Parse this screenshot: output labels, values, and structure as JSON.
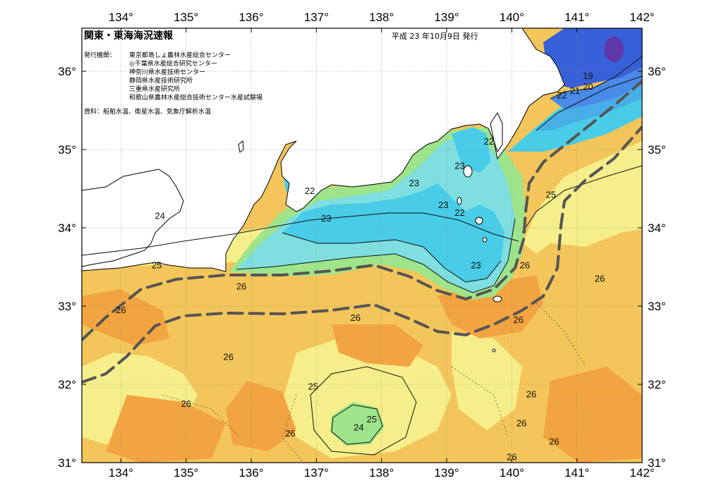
{
  "header": {
    "title": "関東・東海海況速報",
    "date": "平成 23 年10月9日 発行"
  },
  "info": {
    "issuer_label": "発行機関：",
    "issuers": [
      "東京都島しょ農林水産総合センター",
      "◎千葉県水産総合研究センター",
      "神奈川県水産技術センター",
      "静岡県水産技術研究所",
      "三重県水産研究所",
      "和歌山県農林水産総合技術センター水産試験場"
    ],
    "source": "資料：船舶水温、衛星水温、気象庁解析水温"
  },
  "axes": {
    "lon_labels": [
      "134°",
      "135°",
      "136°",
      "137°",
      "138°",
      "139°",
      "140°",
      "141°",
      "142°"
    ],
    "lat_labels": [
      "36°",
      "35°",
      "34°",
      "33°",
      "32°",
      "31°"
    ]
  },
  "isotherm_labels": [
    {
      "text": "19",
      "lon": 141.17,
      "lat": 35.92
    },
    {
      "text": "20",
      "lon": 141.17,
      "lat": 35.78
    },
    {
      "text": "21",
      "lon": 140.97,
      "lat": 35.73
    },
    {
      "text": "22",
      "lon": 140.77,
      "lat": 35.67
    },
    {
      "text": "22",
      "lon": 139.65,
      "lat": 35.08
    },
    {
      "text": "23",
      "lon": 139.2,
      "lat": 34.77
    },
    {
      "text": "23",
      "lon": 138.5,
      "lat": 34.55
    },
    {
      "text": "23",
      "lon": 138.95,
      "lat": 34.27
    },
    {
      "text": "22",
      "lon": 139.2,
      "lat": 34.17
    },
    {
      "text": "23",
      "lon": 139.45,
      "lat": 33.5
    },
    {
      "text": "26",
      "lon": 140.2,
      "lat": 33.5
    },
    {
      "text": "25",
      "lon": 140.6,
      "lat": 34.4
    },
    {
      "text": "26",
      "lon": 141.35,
      "lat": 33.33
    },
    {
      "text": "22",
      "lon": 136.9,
      "lat": 34.45
    },
    {
      "text": "23",
      "lon": 137.15,
      "lat": 34.1
    },
    {
      "text": "24",
      "lon": 134.6,
      "lat": 34.13
    },
    {
      "text": "25",
      "lon": 134.55,
      "lat": 33.5
    },
    {
      "text": "26",
      "lon": 135.85,
      "lat": 33.23
    },
    {
      "text": "26",
      "lon": 134.0,
      "lat": 32.93
    },
    {
      "text": "26",
      "lon": 137.6,
      "lat": 32.83
    },
    {
      "text": "26",
      "lon": 140.1,
      "lat": 32.8
    },
    {
      "text": "26",
      "lon": 135.65,
      "lat": 32.33
    },
    {
      "text": "25",
      "lon": 136.95,
      "lat": 31.95
    },
    {
      "text": "26",
      "lon": 135.0,
      "lat": 31.73
    },
    {
      "text": "24",
      "lon": 137.65,
      "lat": 31.43
    },
    {
      "text": "25",
      "lon": 137.85,
      "lat": 31.53
    },
    {
      "text": "26",
      "lon": 140.3,
      "lat": 31.85
    },
    {
      "text": "26",
      "lon": 136.6,
      "lat": 31.35
    },
    {
      "text": "26",
      "lon": 140.15,
      "lat": 31.48
    },
    {
      "text": "26",
      "lon": 140.65,
      "lat": 31.25
    },
    {
      "text": "26",
      "lon": 140.0,
      "lat": 31.05
    }
  ],
  "colors": {
    "t19": "#3860d8",
    "t20": "#4a8ae8",
    "t21": "#48aee8",
    "t22": "#48cce8",
    "t23": "#7edee0",
    "t24": "#9ee48a",
    "t25": "#f6ee8a",
    "t26": "#f3c55a",
    "t27": "#f2a440",
    "land": "#ffffff",
    "kuroshio_axis": "#555555"
  }
}
